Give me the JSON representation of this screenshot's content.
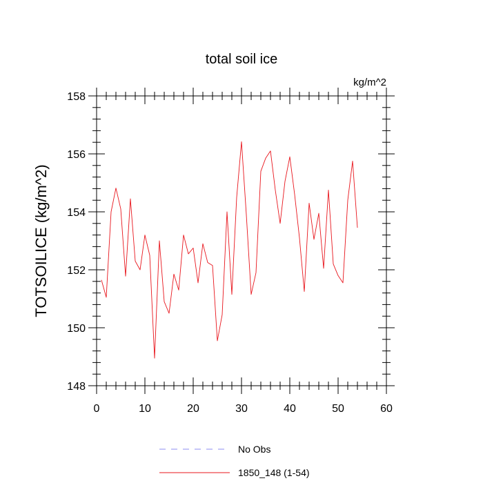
{
  "chart_data": {
    "type": "line",
    "title": "total soil ice",
    "units": "kg/m^2",
    "ylabel": "TOTSOILICE  (kg/m^2)",
    "xlabel": "",
    "xlim": [
      0,
      60
    ],
    "ylim": [
      148,
      158
    ],
    "x_ticks": [
      "0",
      "10",
      "20",
      "30",
      "40",
      "50",
      "60"
    ],
    "y_ticks": [
      "148",
      "150",
      "152",
      "154",
      "156",
      "158"
    ],
    "grid": false,
    "legend_position": "bottom",
    "colors": {
      "series": "#e8141b",
      "no_obs": "#8c8cf0"
    },
    "legend": [
      {
        "label": "No Obs",
        "style": "dashed",
        "color": "#8c8cf0"
      },
      {
        "label": "1850_148 (1-54)",
        "style": "solid",
        "color": "#e8141b"
      }
    ],
    "series": [
      {
        "name": "1850_148 (1-54)",
        "x": [
          1,
          2,
          3,
          4,
          5,
          6,
          7,
          8,
          9,
          10,
          11,
          12,
          13,
          14,
          15,
          16,
          17,
          18,
          19,
          20,
          21,
          22,
          23,
          24,
          25,
          26,
          27,
          28,
          29,
          30,
          31,
          32,
          33,
          34,
          35,
          36,
          37,
          38,
          39,
          40,
          41,
          42,
          43,
          44,
          45,
          46,
          47,
          48,
          49,
          50,
          51,
          52,
          53,
          54
        ],
        "y": [
          151.65,
          151.05,
          154.0,
          154.82,
          154.1,
          151.78,
          154.45,
          152.3,
          152.0,
          153.2,
          152.5,
          148.95,
          153.0,
          150.9,
          150.5,
          151.85,
          151.3,
          153.2,
          152.55,
          152.75,
          151.55,
          152.9,
          152.25,
          152.15,
          149.55,
          150.45,
          154.0,
          151.15,
          154.5,
          156.42,
          153.9,
          151.15,
          151.9,
          155.4,
          155.85,
          156.1,
          154.75,
          153.6,
          155.05,
          155.9,
          154.6,
          153.1,
          151.25,
          154.3,
          153.05,
          153.95,
          152.05,
          154.75,
          152.2,
          151.8,
          151.55,
          154.4,
          155.75,
          153.45
        ]
      }
    ]
  }
}
